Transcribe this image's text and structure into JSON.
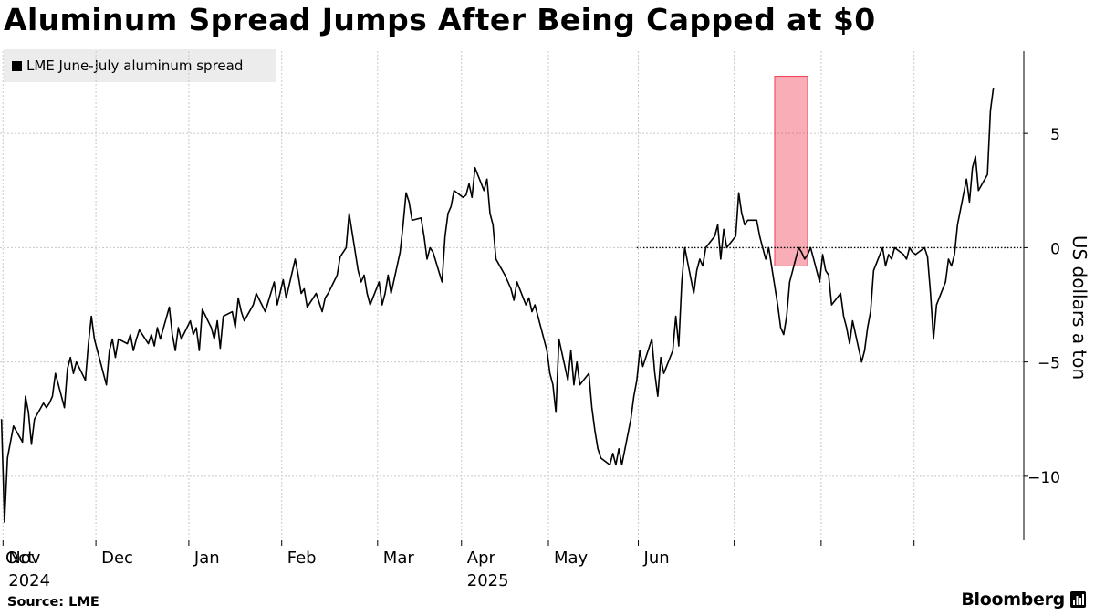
{
  "header": {
    "title": "Aluminum Spread Jumps After Being Capped at $0"
  },
  "legend": {
    "label": "LME June-July aluminum spread",
    "swatch_color": "#000000"
  },
  "footer": {
    "source": "Source: LME",
    "brand": "Bloomberg"
  },
  "colors": {
    "line": "#000000",
    "highlight": "#f03c50",
    "grid": "#c8c8c8"
  },
  "chart_data": {
    "type": "line",
    "title": "Aluminum Spread Jumps After Being Capped at $0",
    "ylabel": "US dollars a ton",
    "ylim": [
      -12.8,
      8.6
    ],
    "yticks": [
      5,
      0,
      -5,
      -10
    ],
    "grid": true,
    "legend_position": "top-left",
    "x_months": [
      "Oct",
      "Nov",
      "Dec",
      "Jan",
      "Feb",
      "Mar",
      "Apr",
      "May",
      "Jun"
    ],
    "x_years": [
      "2024",
      "2025"
    ],
    "zero_reference": {
      "y": 0,
      "from": "2025-04-30",
      "style": "dotted"
    },
    "highlight": {
      "from": "2025-06-15",
      "to": "2025-06-26",
      "ymin": -0.8,
      "ymax": 7.5
    },
    "series": [
      {
        "name": "LME June-July aluminum spread",
        "points": [
          [
            "2024-09-30",
            -7.5
          ],
          [
            "2024-10-01",
            -12.0
          ],
          [
            "2024-10-02",
            -9.2
          ],
          [
            "2024-10-03",
            -8.5
          ],
          [
            "2024-10-04",
            -7.8
          ],
          [
            "2024-10-07",
            -8.5
          ],
          [
            "2024-10-08",
            -6.5
          ],
          [
            "2024-10-09",
            -7.2
          ],
          [
            "2024-10-10",
            -8.6
          ],
          [
            "2024-10-11",
            -7.5
          ],
          [
            "2024-10-14",
            -6.8
          ],
          [
            "2024-10-15",
            -7.0
          ],
          [
            "2024-10-16",
            -6.8
          ],
          [
            "2024-10-17",
            -6.5
          ],
          [
            "2024-10-18",
            -5.5
          ],
          [
            "2024-10-21",
            -7.0
          ],
          [
            "2024-10-22",
            -5.3
          ],
          [
            "2024-10-23",
            -4.8
          ],
          [
            "2024-10-24",
            -5.5
          ],
          [
            "2024-10-25",
            -5.0
          ],
          [
            "2024-10-28",
            -5.8
          ],
          [
            "2024-10-29",
            -4.2
          ],
          [
            "2024-10-30",
            -3.0
          ],
          [
            "2024-10-31",
            -4.0
          ],
          [
            "2024-11-01",
            -4.5
          ],
          [
            "2024-11-04",
            -6.0
          ],
          [
            "2024-11-05",
            -4.5
          ],
          [
            "2024-11-06",
            -4.0
          ],
          [
            "2024-11-07",
            -4.8
          ],
          [
            "2024-11-08",
            -4.0
          ],
          [
            "2024-11-11",
            -4.2
          ],
          [
            "2024-11-12",
            -3.8
          ],
          [
            "2024-11-13",
            -4.5
          ],
          [
            "2024-11-14",
            -4.0
          ],
          [
            "2024-11-15",
            -3.6
          ],
          [
            "2024-11-18",
            -4.2
          ],
          [
            "2024-11-19",
            -3.8
          ],
          [
            "2024-11-20",
            -4.3
          ],
          [
            "2024-11-21",
            -3.5
          ],
          [
            "2024-11-22",
            -4.0
          ],
          [
            "2024-11-25",
            -2.6
          ],
          [
            "2024-11-26",
            -3.8
          ],
          [
            "2024-11-27",
            -4.5
          ],
          [
            "2024-11-28",
            -3.5
          ],
          [
            "2024-11-29",
            -4.0
          ],
          [
            "2024-12-02",
            -3.2
          ],
          [
            "2024-12-03",
            -3.8
          ],
          [
            "2024-12-04",
            -3.5
          ],
          [
            "2024-12-05",
            -4.5
          ],
          [
            "2024-12-06",
            -2.7
          ],
          [
            "2024-12-09",
            -3.5
          ],
          [
            "2024-12-10",
            -4.0
          ],
          [
            "2024-12-11",
            -3.2
          ],
          [
            "2024-12-12",
            -4.4
          ],
          [
            "2024-12-13",
            -3.0
          ],
          [
            "2024-12-16",
            -2.8
          ],
          [
            "2024-12-17",
            -3.5
          ],
          [
            "2024-12-18",
            -2.2
          ],
          [
            "2024-12-19",
            -2.8
          ],
          [
            "2024-12-20",
            -3.2
          ],
          [
            "2024-12-23",
            -2.5
          ],
          [
            "2024-12-24",
            -2.0
          ],
          [
            "2024-12-27",
            -2.8
          ],
          [
            "2024-12-30",
            -1.5
          ],
          [
            "2024-12-31",
            -2.5
          ],
          [
            "2025-01-02",
            -1.4
          ],
          [
            "2025-01-03",
            -2.2
          ],
          [
            "2025-01-06",
            -0.5
          ],
          [
            "2025-01-07",
            -1.2
          ],
          [
            "2025-01-08",
            -2.0
          ],
          [
            "2025-01-09",
            -1.8
          ],
          [
            "2025-01-10",
            -2.6
          ],
          [
            "2025-01-13",
            -2.0
          ],
          [
            "2025-01-14",
            -2.4
          ],
          [
            "2025-01-15",
            -2.8
          ],
          [
            "2025-01-16",
            -2.2
          ],
          [
            "2025-01-17",
            -2.0
          ],
          [
            "2025-01-20",
            -1.2
          ],
          [
            "2025-01-21",
            -0.4
          ],
          [
            "2025-01-22",
            -0.2
          ],
          [
            "2025-01-23",
            0.0
          ],
          [
            "2025-01-24",
            1.5
          ],
          [
            "2025-01-27",
            -1.0
          ],
          [
            "2025-01-28",
            -1.5
          ],
          [
            "2025-01-29",
            -1.2
          ],
          [
            "2025-01-30",
            -2.0
          ],
          [
            "2025-01-31",
            -2.5
          ],
          [
            "2025-02-03",
            -1.5
          ],
          [
            "2025-02-04",
            -2.5
          ],
          [
            "2025-02-05",
            -2.0
          ],
          [
            "2025-02-06",
            -1.2
          ],
          [
            "2025-02-07",
            -2.0
          ],
          [
            "2025-02-10",
            -0.2
          ],
          [
            "2025-02-11",
            1.0
          ],
          [
            "2025-02-12",
            2.4
          ],
          [
            "2025-02-13",
            2.0
          ],
          [
            "2025-02-14",
            1.2
          ],
          [
            "2025-02-17",
            1.3
          ],
          [
            "2025-02-18",
            0.5
          ],
          [
            "2025-02-19",
            -0.5
          ],
          [
            "2025-02-20",
            0.0
          ],
          [
            "2025-02-21",
            -0.2
          ],
          [
            "2025-02-24",
            -1.5
          ],
          [
            "2025-02-25",
            0.5
          ],
          [
            "2025-02-26",
            1.5
          ],
          [
            "2025-02-27",
            1.8
          ],
          [
            "2025-02-28",
            2.5
          ],
          [
            "2025-03-03",
            2.2
          ],
          [
            "2025-03-04",
            2.3
          ],
          [
            "2025-03-05",
            2.8
          ],
          [
            "2025-03-06",
            2.2
          ],
          [
            "2025-03-07",
            3.5
          ],
          [
            "2025-03-10",
            2.5
          ],
          [
            "2025-03-11",
            3.0
          ],
          [
            "2025-03-12",
            1.5
          ],
          [
            "2025-03-13",
            1.0
          ],
          [
            "2025-03-14",
            -0.5
          ],
          [
            "2025-03-17",
            -1.2
          ],
          [
            "2025-03-18",
            -1.5
          ],
          [
            "2025-03-19",
            -1.8
          ],
          [
            "2025-03-20",
            -2.3
          ],
          [
            "2025-03-21",
            -1.5
          ],
          [
            "2025-03-24",
            -2.5
          ],
          [
            "2025-03-25",
            -2.2
          ],
          [
            "2025-03-26",
            -2.8
          ],
          [
            "2025-03-27",
            -2.5
          ],
          [
            "2025-03-28",
            -3.0
          ],
          [
            "2025-03-31",
            -4.5
          ],
          [
            "2025-04-01",
            -5.5
          ],
          [
            "2025-04-02",
            -6.0
          ],
          [
            "2025-04-03",
            -7.2
          ],
          [
            "2025-04-04",
            -4.0
          ],
          [
            "2025-04-07",
            -5.8
          ],
          [
            "2025-04-08",
            -4.5
          ],
          [
            "2025-04-09",
            -6.0
          ],
          [
            "2025-04-10",
            -5.0
          ],
          [
            "2025-04-11",
            -6.0
          ],
          [
            "2025-04-14",
            -5.5
          ],
          [
            "2025-04-15",
            -7.0
          ],
          [
            "2025-04-16",
            -8.0
          ],
          [
            "2025-04-17",
            -8.8
          ],
          [
            "2025-04-18",
            -9.2
          ],
          [
            "2025-04-21",
            -9.5
          ],
          [
            "2025-04-22",
            -9.0
          ],
          [
            "2025-04-23",
            -9.5
          ],
          [
            "2025-04-24",
            -8.8
          ],
          [
            "2025-04-25",
            -9.5
          ],
          [
            "2025-04-28",
            -7.5
          ],
          [
            "2025-04-29",
            -6.5
          ],
          [
            "2025-04-30",
            -5.8
          ],
          [
            "2025-05-01",
            -4.5
          ],
          [
            "2025-05-02",
            -5.2
          ],
          [
            "2025-05-05",
            -4.0
          ],
          [
            "2025-05-06",
            -5.5
          ],
          [
            "2025-05-07",
            -6.5
          ],
          [
            "2025-05-08",
            -4.8
          ],
          [
            "2025-05-09",
            -5.5
          ],
          [
            "2025-05-12",
            -4.5
          ],
          [
            "2025-05-13",
            -3.0
          ],
          [
            "2025-05-14",
            -4.3
          ],
          [
            "2025-05-15",
            -1.5
          ],
          [
            "2025-05-16",
            0.0
          ],
          [
            "2025-05-19",
            -2.0
          ],
          [
            "2025-05-20",
            -1.0
          ],
          [
            "2025-05-21",
            -0.5
          ],
          [
            "2025-05-22",
            -0.8
          ],
          [
            "2025-05-23",
            0.0
          ],
          [
            "2025-05-26",
            0.5
          ],
          [
            "2025-05-27",
            1.0
          ],
          [
            "2025-05-28",
            -0.5
          ],
          [
            "2025-05-29",
            0.8
          ],
          [
            "2025-05-30",
            0.0
          ],
          [
            "2025-06-02",
            0.5
          ],
          [
            "2025-06-03",
            2.4
          ],
          [
            "2025-06-04",
            1.5
          ],
          [
            "2025-06-05",
            1.0
          ],
          [
            "2025-06-06",
            1.2
          ],
          [
            "2025-06-09",
            1.2
          ],
          [
            "2025-06-10",
            0.5
          ],
          [
            "2025-06-11",
            0.0
          ],
          [
            "2025-06-12",
            -0.5
          ],
          [
            "2025-06-13",
            0.0
          ],
          [
            "2025-06-16",
            -2.5
          ],
          [
            "2025-06-17",
            -3.5
          ],
          [
            "2025-06-18",
            -3.8
          ],
          [
            "2025-06-19",
            -3.0
          ],
          [
            "2025-06-20",
            -1.5
          ],
          [
            "2025-06-23",
            0.0
          ],
          [
            "2025-06-24",
            -0.2
          ],
          [
            "2025-06-25",
            -0.5
          ],
          [
            "2025-06-26",
            -0.3
          ],
          [
            "2025-06-27",
            0.0
          ],
          [
            "2025-06-30",
            -1.5
          ],
          [
            "2025-07-01",
            -0.3
          ],
          [
            "2025-07-02",
            -1.0
          ],
          [
            "2025-07-03",
            -1.2
          ],
          [
            "2025-07-04",
            -2.5
          ],
          [
            "2025-07-07",
            -2.0
          ],
          [
            "2025-07-08",
            -3.0
          ],
          [
            "2025-07-09",
            -3.5
          ],
          [
            "2025-07-10",
            -4.2
          ],
          [
            "2025-07-11",
            -3.2
          ],
          [
            "2025-07-14",
            -5.0
          ],
          [
            "2025-07-15",
            -4.5
          ],
          [
            "2025-07-16",
            -3.5
          ],
          [
            "2025-07-17",
            -2.8
          ],
          [
            "2025-07-18",
            -1.0
          ],
          [
            "2025-07-21",
            0.0
          ],
          [
            "2025-07-22",
            -0.8
          ],
          [
            "2025-07-23",
            -0.3
          ],
          [
            "2025-07-24",
            -0.5
          ],
          [
            "2025-07-25",
            0.0
          ],
          [
            "2025-07-28",
            -0.3
          ],
          [
            "2025-07-29",
            -0.5
          ],
          [
            "2025-07-30",
            0.0
          ],
          [
            "2025-07-31",
            -0.2
          ],
          [
            "2025-08-01",
            -0.3
          ],
          [
            "2025-08-04",
            0.0
          ],
          [
            "2025-08-05",
            -0.4
          ],
          [
            "2025-08-06",
            -2.0
          ],
          [
            "2025-08-07",
            -4.0
          ],
          [
            "2025-08-08",
            -2.5
          ],
          [
            "2025-08-11",
            -1.5
          ],
          [
            "2025-08-12",
            -0.5
          ],
          [
            "2025-08-13",
            -0.8
          ],
          [
            "2025-08-14",
            -0.3
          ],
          [
            "2025-08-15",
            1.0
          ],
          [
            "2025-08-18",
            3.0
          ],
          [
            "2025-08-19",
            2.0
          ],
          [
            "2025-08-20",
            3.5
          ],
          [
            "2025-08-21",
            4.0
          ],
          [
            "2025-08-22",
            2.5
          ],
          [
            "2025-08-25",
            3.2
          ],
          [
            "2025-08-26",
            6.0
          ],
          [
            "2025-08-27",
            7.0
          ]
        ]
      }
    ]
  }
}
